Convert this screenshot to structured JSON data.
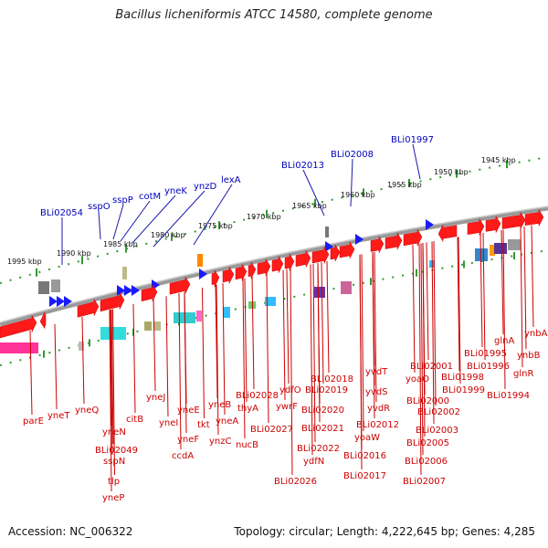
{
  "title": "Bacillus licheniformis ATCC 14580, complete genome",
  "footer": {
    "accession": "Accession: NC_006322",
    "summary": "Topology: circular; Length: 4,222,645 bp; Genes: 4,285"
  },
  "kbp_labels": [
    "1995 kbp",
    "1990 kbp",
    "1985 kbp",
    "1980 kbp",
    "1975 kbp",
    "1970 kbp",
    "1965 kbp",
    "1960 kbp",
    "1955 kbp",
    "1950 kbp",
    "1945 kbp"
  ],
  "top_gene_labels": [
    "BLi02054",
    "sspO",
    "sspP",
    "cotM",
    "yneK",
    "ynzD",
    "lexA",
    "BLi02013",
    "BLi02008",
    "BLi01997"
  ],
  "bottom_gene_labels": [
    "parE",
    "yneT",
    "yneQ",
    "yneN",
    "BLi02049",
    "sspN",
    "tlp",
    "yneP",
    "citB",
    "yneJ",
    "yneI",
    "yneE",
    "yneF",
    "ccdA",
    "tkt",
    "yneB",
    "yneA",
    "ynzC",
    "BLi02028",
    "thyA",
    "nucB",
    "BLi02027",
    "ydfO",
    "ywrF",
    "BLi02026",
    "BLi02018",
    "BLi02019",
    "BLi02020",
    "BLi02021",
    "BLi02022",
    "ydfN",
    "BLi02016",
    "BLi02017",
    "yvdT",
    "yvdS",
    "yvdR",
    "BLi02012",
    "yoaW",
    "yoaO",
    "BLi02001",
    "BLi02000",
    "BLi02002",
    "BLi02003",
    "BLi02005",
    "BLi02006",
    "BLi02007",
    "BLi01995",
    "BLi01996",
    "BLi01998",
    "BLi01999",
    "glnA",
    "ynbA",
    "ynbB",
    "glnR",
    "BLi01994"
  ],
  "colors": {
    "gene_forward": "#ff0000",
    "label_top": "#0000bb",
    "label_bottom": "#cc0000",
    "backbone": "#888888",
    "tick": "#339933"
  }
}
